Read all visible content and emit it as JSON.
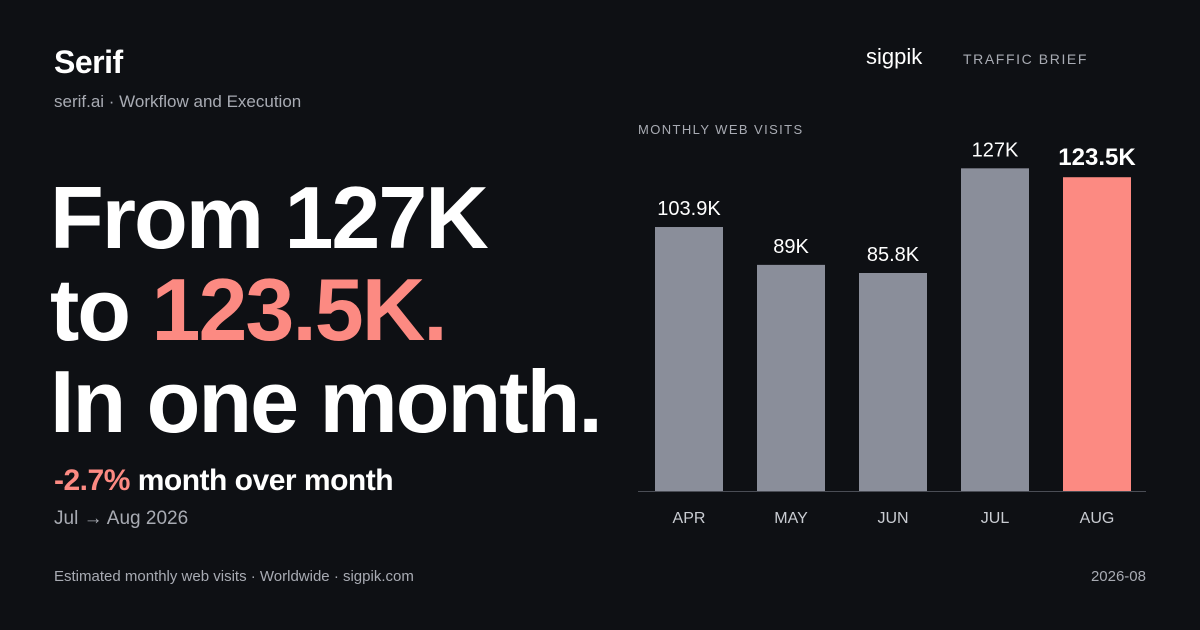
{
  "brand": {
    "name": "Serif",
    "subtitle": "serif.ai · Workflow and Execution"
  },
  "headline": {
    "line1": "From 127K",
    "line2_prefix": "to ",
    "line2_accent": "123.5K.",
    "line3": "In one month."
  },
  "change": {
    "pct": "-2.7%",
    "text": " month over month",
    "period": "Jul → Aug 2026"
  },
  "footer": {
    "left": "Estimated monthly web visits · Worldwide · sigpik.com",
    "right": "2026-08"
  },
  "source": {
    "logo": "sigpik",
    "tag": "TRAFFIC BRIEF"
  },
  "colors": {
    "background": "#0e1014",
    "bar": "#8a8e9a",
    "highlight": "#fc8a82",
    "muted_text": "#a8abb3",
    "axis": "#4a4d55"
  },
  "chart_data": {
    "type": "bar",
    "title": "MONTHLY WEB VISITS",
    "categories": [
      "APR",
      "MAY",
      "JUN",
      "JUL",
      "AUG"
    ],
    "values": [
      103.9,
      89,
      85.8,
      127,
      123.5
    ],
    "value_labels": [
      "103.9K",
      "89K",
      "85.8K",
      "127K",
      "123.5K"
    ],
    "highlight_index": 4,
    "ylim": [
      0,
      135
    ],
    "grid": false
  }
}
